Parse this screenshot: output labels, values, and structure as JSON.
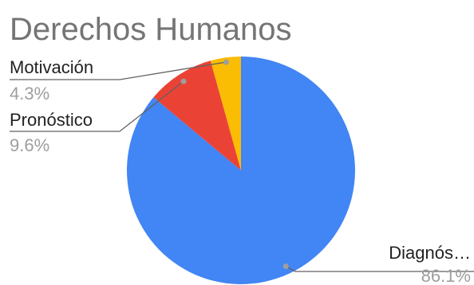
{
  "chart_data": {
    "type": "pie",
    "title": "Derechos Humanos",
    "categories": [
      "Diagnós…",
      "Pronóstico",
      "Motivación"
    ],
    "values": [
      86.1,
      9.6,
      4.3
    ],
    "labels": [
      "86.1%",
      "9.6%",
      "4.3%"
    ],
    "colors": [
      "#4285f4",
      "#ea4335",
      "#fbbc04"
    ],
    "start_angle_deg": 0,
    "direction": "clockwise",
    "legend": "none"
  }
}
